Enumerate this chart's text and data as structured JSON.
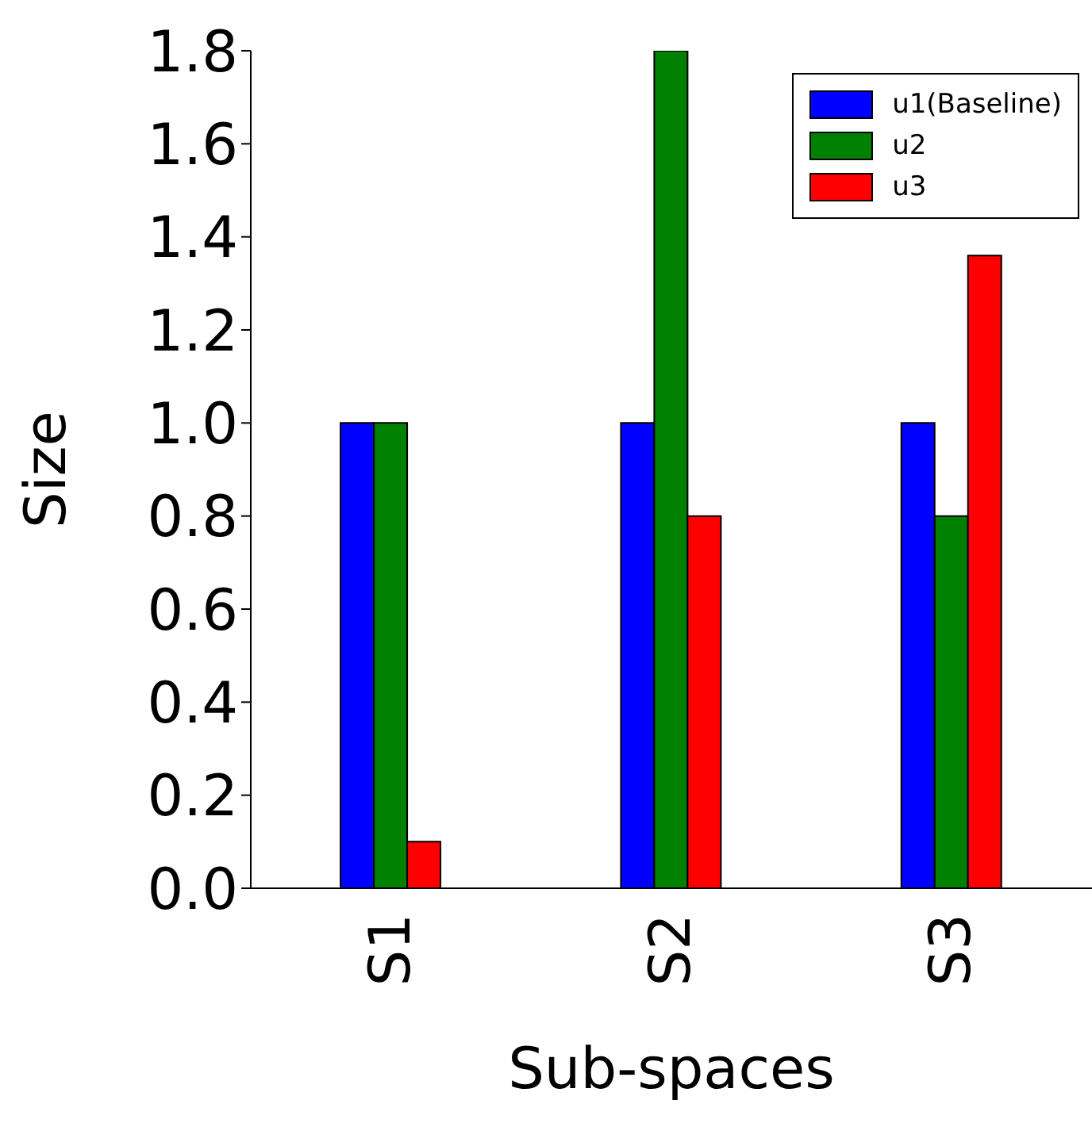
{
  "chart_data": {
    "type": "bar",
    "xlabel": "Sub-spaces",
    "ylabel": "Size",
    "categories": [
      "S1",
      "S2",
      "S3"
    ],
    "series": [
      {
        "name": "u1(Baseline)",
        "color": "#0000ff",
        "values": [
          1.0,
          1.0,
          1.0
        ]
      },
      {
        "name": "u2",
        "color": "#008000",
        "values": [
          1.0,
          1.8,
          0.8
        ]
      },
      {
        "name": "u3",
        "color": "#ff0000",
        "values": [
          0.1,
          0.8,
          1.36
        ]
      }
    ],
    "ylim": [
      0,
      1.8
    ],
    "yticks": [
      {
        "value": 0,
        "label": "0.0"
      },
      {
        "value": 0.2,
        "label": "0.2"
      },
      {
        "value": 0.4,
        "label": "0.4"
      },
      {
        "value": 0.6,
        "label": "0.6"
      },
      {
        "value": 0.8,
        "label": "0.8"
      },
      {
        "value": 1,
        "label": "1.0"
      },
      {
        "value": 1.2,
        "label": "1.2"
      },
      {
        "value": 1.4,
        "label": "1.4"
      },
      {
        "value": 1.6,
        "label": "1.6"
      },
      {
        "value": 1.8,
        "label": "1.8"
      }
    ],
    "grid": false,
    "legend": "top right"
  }
}
